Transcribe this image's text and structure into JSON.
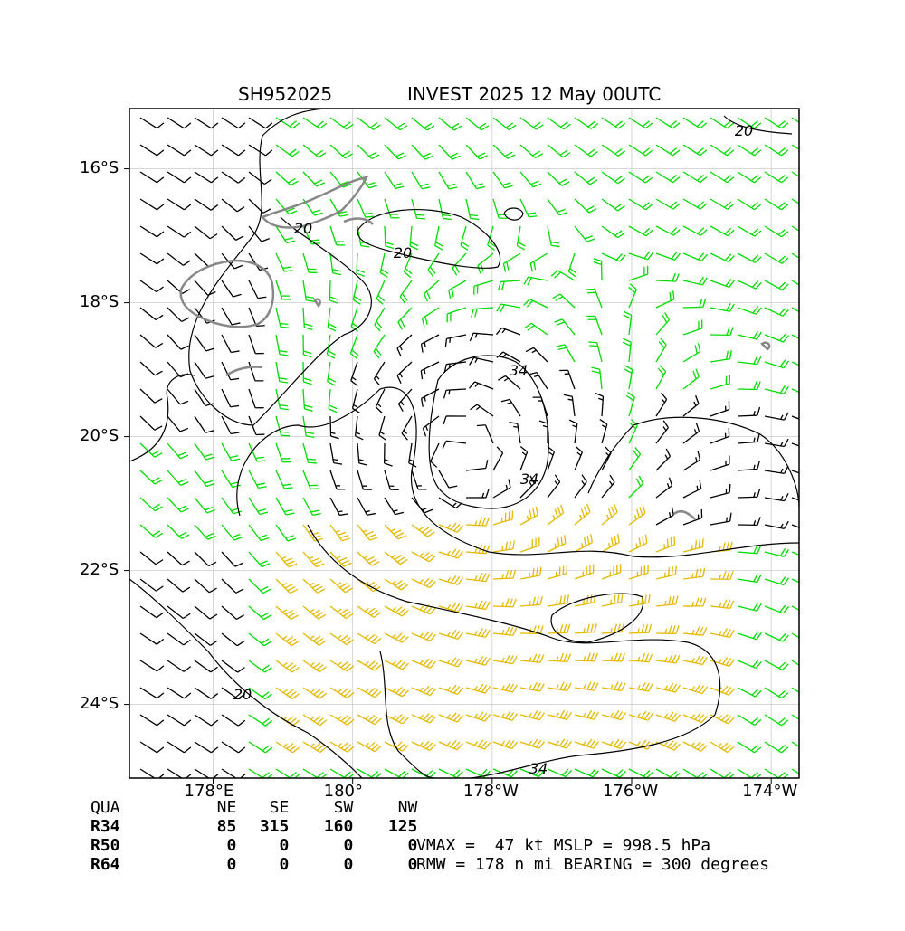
{
  "header": {
    "storm_id": "SH952025",
    "storm_title": "INVEST 2025 12 May 00UTC"
  },
  "chart_data": {
    "type": "wind-barb-map",
    "x_axis": {
      "unit": "degrees longitude",
      "range": [
        176.8,
        186.4
      ],
      "ticks": [
        {
          "value": 178,
          "label": "178°E"
        },
        {
          "value": 180,
          "label": "180°"
        },
        {
          "value": 182,
          "label": "178°W"
        },
        {
          "value": 184,
          "label": "176°W"
        },
        {
          "value": 186,
          "label": "174°W"
        }
      ]
    },
    "y_axis": {
      "unit": "degrees latitude",
      "range": [
        -25.1,
        -15.1
      ],
      "ticks": [
        {
          "value": -16,
          "label": "16°S"
        },
        {
          "value": -18,
          "label": "18°S"
        },
        {
          "value": -20,
          "label": "20°S"
        },
        {
          "value": -22,
          "label": "22°S"
        },
        {
          "value": -24,
          "label": "24°S"
        }
      ]
    },
    "grid": true,
    "storm_center": {
      "lon": 181.6,
      "lat": -20.3
    },
    "contour_levels": [
      {
        "label": "20"
      },
      {
        "label": "20"
      },
      {
        "label": "20"
      },
      {
        "label": "20"
      },
      {
        "label": "34"
      },
      {
        "label": "34"
      },
      {
        "label": "34"
      }
    ],
    "barb_colors": {
      "below_20kt": "#000000",
      "20_to_34kt": "#00dd00",
      "above_34kt": "#e6b800"
    },
    "coastline_color": "#888888"
  },
  "wind_radii": {
    "headers": [
      "QUA",
      "NE",
      "SE",
      "SW",
      "NW"
    ],
    "rows": [
      {
        "label": "R34",
        "values": [
          "85",
          "315",
          "160",
          "125"
        ]
      },
      {
        "label": "R50",
        "values": [
          "0",
          "0",
          "0",
          "0"
        ]
      },
      {
        "label": "R64",
        "values": [
          "0",
          "0",
          "0",
          "0"
        ]
      }
    ]
  },
  "stats": {
    "line1": "VMAX =  47 kt MSLP = 998.5 hPa",
    "line2": "RMW = 178 n mi BEARING = 300 degrees"
  }
}
